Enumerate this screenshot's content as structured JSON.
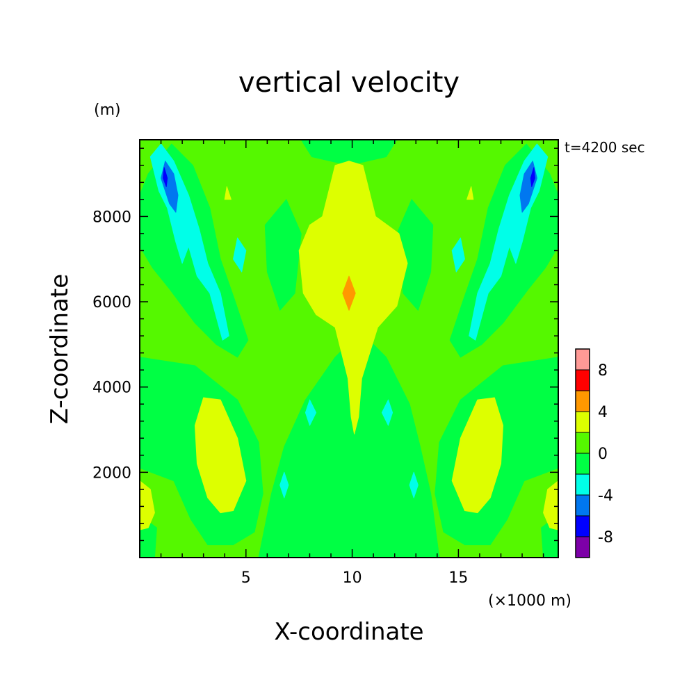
{
  "chart_data": {
    "type": "heatmap",
    "title": "vertical velocity",
    "xlabel": "X-coordinate",
    "ylabel": "Z-coordinate",
    "x_unit_label": "(×1000 m)",
    "y_unit_label": "(m)",
    "time_label": "t=4200 sec",
    "xlim": [
      0,
      19.7
    ],
    "ylim": [
      0,
      9800
    ],
    "x_major_ticks": [
      5,
      10,
      15
    ],
    "x_minor_step": 1,
    "y_major_ticks": [
      2000,
      4000,
      6000,
      8000
    ],
    "y_minor_step": 400,
    "colorbar": {
      "levels": [
        -10,
        -8,
        -6,
        -4,
        -2,
        0,
        2,
        4,
        6,
        8,
        10
      ],
      "labels": [
        "8",
        "4",
        "0",
        "-4",
        "-8"
      ],
      "label_values": [
        8,
        4,
        0,
        -4,
        -8
      ],
      "colors": [
        "#7d00a8",
        "#0000ff",
        "#0077f0",
        "#00ffe8",
        "#00ff44",
        "#55f800",
        "#ddff00",
        "#ff9800",
        "#ff0000",
        "#ff9a96"
      ]
    },
    "contour_regions": [
      {
        "level": "0 to 2",
        "fill": "#55f800",
        "points": [
          [
            0,
            9800
          ],
          [
            19.7,
            9800
          ],
          [
            19.7,
            0
          ],
          [
            0,
            0
          ]
        ]
      },
      {
        "level": "-2 to 0",
        "fill": "#00ff44",
        "points": [
          [
            5.6,
            0
          ],
          [
            14.1,
            0
          ],
          [
            13.7,
            1500
          ],
          [
            13.2,
            2600
          ],
          [
            12.7,
            3600
          ],
          [
            11.6,
            4700
          ],
          [
            10.4,
            5300
          ],
          [
            9.2,
            4700
          ],
          [
            7.8,
            3700
          ],
          [
            6.8,
            2600
          ],
          [
            6.2,
            1500
          ]
        ]
      },
      {
        "level": "-2 to 0",
        "fill": "#00ff44",
        "points": [
          [
            0.4,
            9000
          ],
          [
            1.5,
            9700
          ],
          [
            2.5,
            9200
          ],
          [
            3.3,
            8200
          ],
          [
            3.8,
            7000
          ],
          [
            4.5,
            6000
          ],
          [
            5.1,
            5100
          ],
          [
            4.6,
            4700
          ],
          [
            3.6,
            5000
          ],
          [
            2.6,
            5500
          ],
          [
            1.4,
            6300
          ],
          [
            0.6,
            6800
          ],
          [
            0,
            7300
          ],
          [
            0,
            8500
          ]
        ]
      },
      {
        "level": "-2 to 0",
        "fill": "#00ff44",
        "points": [
          [
            19.3,
            9000
          ],
          [
            18.2,
            9700
          ],
          [
            17.2,
            9200
          ],
          [
            16.4,
            8200
          ],
          [
            15.9,
            7000
          ],
          [
            15.2,
            6000
          ],
          [
            14.6,
            5100
          ],
          [
            15.1,
            4700
          ],
          [
            16.1,
            5000
          ],
          [
            17.1,
            5500
          ],
          [
            18.3,
            6300
          ],
          [
            19.1,
            6800
          ],
          [
            19.7,
            7300
          ],
          [
            19.7,
            8500
          ]
        ]
      },
      {
        "level": "-2 to 0",
        "fill": "#00ff44",
        "points": [
          [
            0,
            4700
          ],
          [
            2.6,
            4500
          ],
          [
            4.6,
            3700
          ],
          [
            5.6,
            2700
          ],
          [
            5.8,
            1500
          ],
          [
            5.4,
            600
          ],
          [
            4.4,
            300
          ],
          [
            3.2,
            300
          ],
          [
            2.4,
            900
          ],
          [
            1.6,
            1800
          ],
          [
            0,
            2100
          ]
        ]
      },
      {
        "level": "-2 to 0",
        "fill": "#00ff44",
        "points": [
          [
            19.7,
            4700
          ],
          [
            17.1,
            4500
          ],
          [
            15.1,
            3700
          ],
          [
            14.1,
            2700
          ],
          [
            13.9,
            1500
          ],
          [
            14.3,
            600
          ],
          [
            15.3,
            300
          ],
          [
            16.5,
            300
          ],
          [
            17.3,
            900
          ],
          [
            18.1,
            1800
          ],
          [
            19.7,
            2100
          ]
        ]
      },
      {
        "level": "-2 to 0",
        "fill": "#00ff44",
        "points": [
          [
            5.9,
            7800
          ],
          [
            6.9,
            8400
          ],
          [
            7.6,
            7600
          ],
          [
            7.3,
            6200
          ],
          [
            6.6,
            5800
          ],
          [
            6.0,
            6700
          ]
        ]
      },
      {
        "level": "-2 to 0",
        "fill": "#00ff44",
        "points": [
          [
            13.8,
            7800
          ],
          [
            12.8,
            8400
          ],
          [
            12.1,
            7600
          ],
          [
            12.4,
            6200
          ],
          [
            13.1,
            5800
          ],
          [
            13.7,
            6700
          ]
        ]
      },
      {
        "level": "-2 to 0",
        "fill": "#00ff44",
        "points": [
          [
            7.6,
            9800
          ],
          [
            12.1,
            9800
          ],
          [
            11.6,
            9400
          ],
          [
            9.85,
            9200
          ],
          [
            8.1,
            9400
          ]
        ]
      },
      {
        "level": "-2 to 0",
        "fill": "#00ff44",
        "points": [
          [
            0,
            1000
          ],
          [
            0.8,
            700
          ],
          [
            0.7,
            0
          ],
          [
            0,
            0
          ]
        ]
      },
      {
        "level": "-2 to 0",
        "fill": "#00ff44",
        "points": [
          [
            19.7,
            1000
          ],
          [
            18.9,
            700
          ],
          [
            19.0,
            0
          ],
          [
            19.7,
            0
          ]
        ]
      },
      {
        "level": "2 to 4",
        "fill": "#ddff00",
        "points": [
          [
            8.6,
            8000
          ],
          [
            9.2,
            9200
          ],
          [
            9.85,
            9300
          ],
          [
            10.5,
            9200
          ],
          [
            11.1,
            8000
          ],
          [
            12.2,
            7600
          ],
          [
            12.6,
            6900
          ],
          [
            12.1,
            5900
          ],
          [
            11.2,
            5400
          ],
          [
            10.45,
            4200
          ],
          [
            10.3,
            3300
          ],
          [
            10.1,
            2900
          ],
          [
            9.95,
            3300
          ],
          [
            9.8,
            4200
          ],
          [
            9.2,
            5400
          ],
          [
            8.3,
            5700
          ],
          [
            7.7,
            6200
          ],
          [
            7.5,
            7200
          ],
          [
            8.0,
            7800
          ]
        ]
      },
      {
        "level": "2 to 4",
        "fill": "#ddff00",
        "points": [
          [
            3.0,
            3750
          ],
          [
            3.8,
            3700
          ],
          [
            4.6,
            2800
          ],
          [
            5.0,
            1800
          ],
          [
            4.4,
            1100
          ],
          [
            3.8,
            1050
          ],
          [
            3.2,
            1400
          ],
          [
            2.7,
            2200
          ],
          [
            2.6,
            3100
          ]
        ]
      },
      {
        "level": "2 to 4",
        "fill": "#ddff00",
        "points": [
          [
            16.7,
            3750
          ],
          [
            15.9,
            3700
          ],
          [
            15.1,
            2800
          ],
          [
            14.7,
            1800
          ],
          [
            15.3,
            1100
          ],
          [
            15.9,
            1050
          ],
          [
            16.5,
            1400
          ],
          [
            17.0,
            2200
          ],
          [
            17.1,
            3100
          ]
        ]
      },
      {
        "level": "2 to 4",
        "fill": "#ddff00",
        "points": [
          [
            0,
            1800
          ],
          [
            0.5,
            1600
          ],
          [
            0.7,
            1050
          ],
          [
            0.4,
            700
          ],
          [
            0,
            650
          ]
        ]
      },
      {
        "level": "2 to 4",
        "fill": "#ddff00",
        "points": [
          [
            19.7,
            1800
          ],
          [
            19.2,
            1600
          ],
          [
            19.0,
            1050
          ],
          [
            19.3,
            700
          ],
          [
            19.7,
            650
          ]
        ]
      },
      {
        "level": "2 to 4",
        "fill": "#ddff00",
        "points": [
          [
            4.0,
            8400
          ],
          [
            4.1,
            8700
          ],
          [
            4.3,
            8400
          ]
        ]
      },
      {
        "level": "2 to 4",
        "fill": "#ddff00",
        "points": [
          [
            15.7,
            8400
          ],
          [
            15.6,
            8700
          ],
          [
            15.4,
            8400
          ]
        ]
      },
      {
        "level": "4 to 6",
        "fill": "#ff9800",
        "points": [
          [
            9.55,
            6200
          ],
          [
            9.85,
            6600
          ],
          [
            10.15,
            6200
          ],
          [
            9.85,
            5800
          ]
        ]
      },
      {
        "level": "-4 to -2",
        "fill": "#00ffe8",
        "points": [
          [
            0.5,
            9400
          ],
          [
            1.0,
            9700
          ],
          [
            1.6,
            9300
          ],
          [
            2.3,
            8500
          ],
          [
            2.8,
            7700
          ],
          [
            3.2,
            6900
          ],
          [
            3.8,
            6200
          ],
          [
            4.2,
            5200
          ],
          [
            3.9,
            5100
          ],
          [
            3.3,
            6200
          ],
          [
            2.7,
            6600
          ],
          [
            2.3,
            7300
          ],
          [
            2.0,
            6900
          ],
          [
            1.7,
            7400
          ],
          [
            1.3,
            8200
          ],
          [
            0.9,
            8600
          ]
        ]
      },
      {
        "level": "-4 to -2",
        "fill": "#00ffe8",
        "points": [
          [
            19.2,
            9400
          ],
          [
            18.7,
            9700
          ],
          [
            18.1,
            9300
          ],
          [
            17.4,
            8500
          ],
          [
            16.9,
            7700
          ],
          [
            16.5,
            6900
          ],
          [
            15.9,
            6200
          ],
          [
            15.5,
            5200
          ],
          [
            15.8,
            5100
          ],
          [
            16.4,
            6200
          ],
          [
            17.0,
            6600
          ],
          [
            17.4,
            7300
          ],
          [
            17.7,
            6900
          ],
          [
            18.0,
            7400
          ],
          [
            18.4,
            8200
          ],
          [
            18.8,
            8600
          ]
        ]
      },
      {
        "level": "-4 to -2",
        "fill": "#00ffe8",
        "points": [
          [
            4.6,
            7500
          ],
          [
            5.0,
            7200
          ],
          [
            4.8,
            6700
          ],
          [
            4.4,
            7000
          ]
        ]
      },
      {
        "level": "-4 to -2",
        "fill": "#00ffe8",
        "points": [
          [
            15.1,
            7500
          ],
          [
            14.7,
            7200
          ],
          [
            14.9,
            6700
          ],
          [
            15.3,
            7000
          ]
        ]
      },
      {
        "level": "-4 to -2",
        "fill": "#00ffe8",
        "points": [
          [
            8.0,
            3700
          ],
          [
            8.3,
            3400
          ],
          [
            8.0,
            3100
          ],
          [
            7.8,
            3400
          ]
        ]
      },
      {
        "level": "-4 to -2",
        "fill": "#00ffe8",
        "points": [
          [
            11.7,
            3700
          ],
          [
            11.4,
            3400
          ],
          [
            11.7,
            3100
          ],
          [
            11.9,
            3400
          ]
        ]
      },
      {
        "level": "-4 to -2",
        "fill": "#00ffe8",
        "points": [
          [
            6.8,
            2000
          ],
          [
            7.0,
            1700
          ],
          [
            6.8,
            1400
          ],
          [
            6.6,
            1700
          ]
        ]
      },
      {
        "level": "-4 to -2",
        "fill": "#00ffe8",
        "points": [
          [
            12.9,
            2000
          ],
          [
            12.7,
            1700
          ],
          [
            12.9,
            1400
          ],
          [
            13.1,
            1700
          ]
        ]
      },
      {
        "level": "-6 to -4",
        "fill": "#0077f0",
        "points": [
          [
            1.2,
            9300
          ],
          [
            1.6,
            9000
          ],
          [
            1.8,
            8500
          ],
          [
            1.7,
            8100
          ],
          [
            1.4,
            8300
          ],
          [
            1.0,
            8900
          ]
        ]
      },
      {
        "level": "-6 to -4",
        "fill": "#0077f0",
        "points": [
          [
            18.5,
            9300
          ],
          [
            18.1,
            9000
          ],
          [
            17.9,
            8500
          ],
          [
            18.0,
            8100
          ],
          [
            18.3,
            8300
          ],
          [
            18.7,
            8900
          ]
        ]
      },
      {
        "level": "-8 to -6",
        "fill": "#0000ff",
        "points": [
          [
            1.15,
            9150
          ],
          [
            1.3,
            8900
          ],
          [
            1.25,
            8700
          ],
          [
            1.1,
            8900
          ]
        ]
      },
      {
        "level": "-8 to -6",
        "fill": "#0000ff",
        "points": [
          [
            18.55,
            9150
          ],
          [
            18.4,
            8900
          ],
          [
            18.45,
            8700
          ],
          [
            18.6,
            8900
          ]
        ]
      }
    ]
  }
}
